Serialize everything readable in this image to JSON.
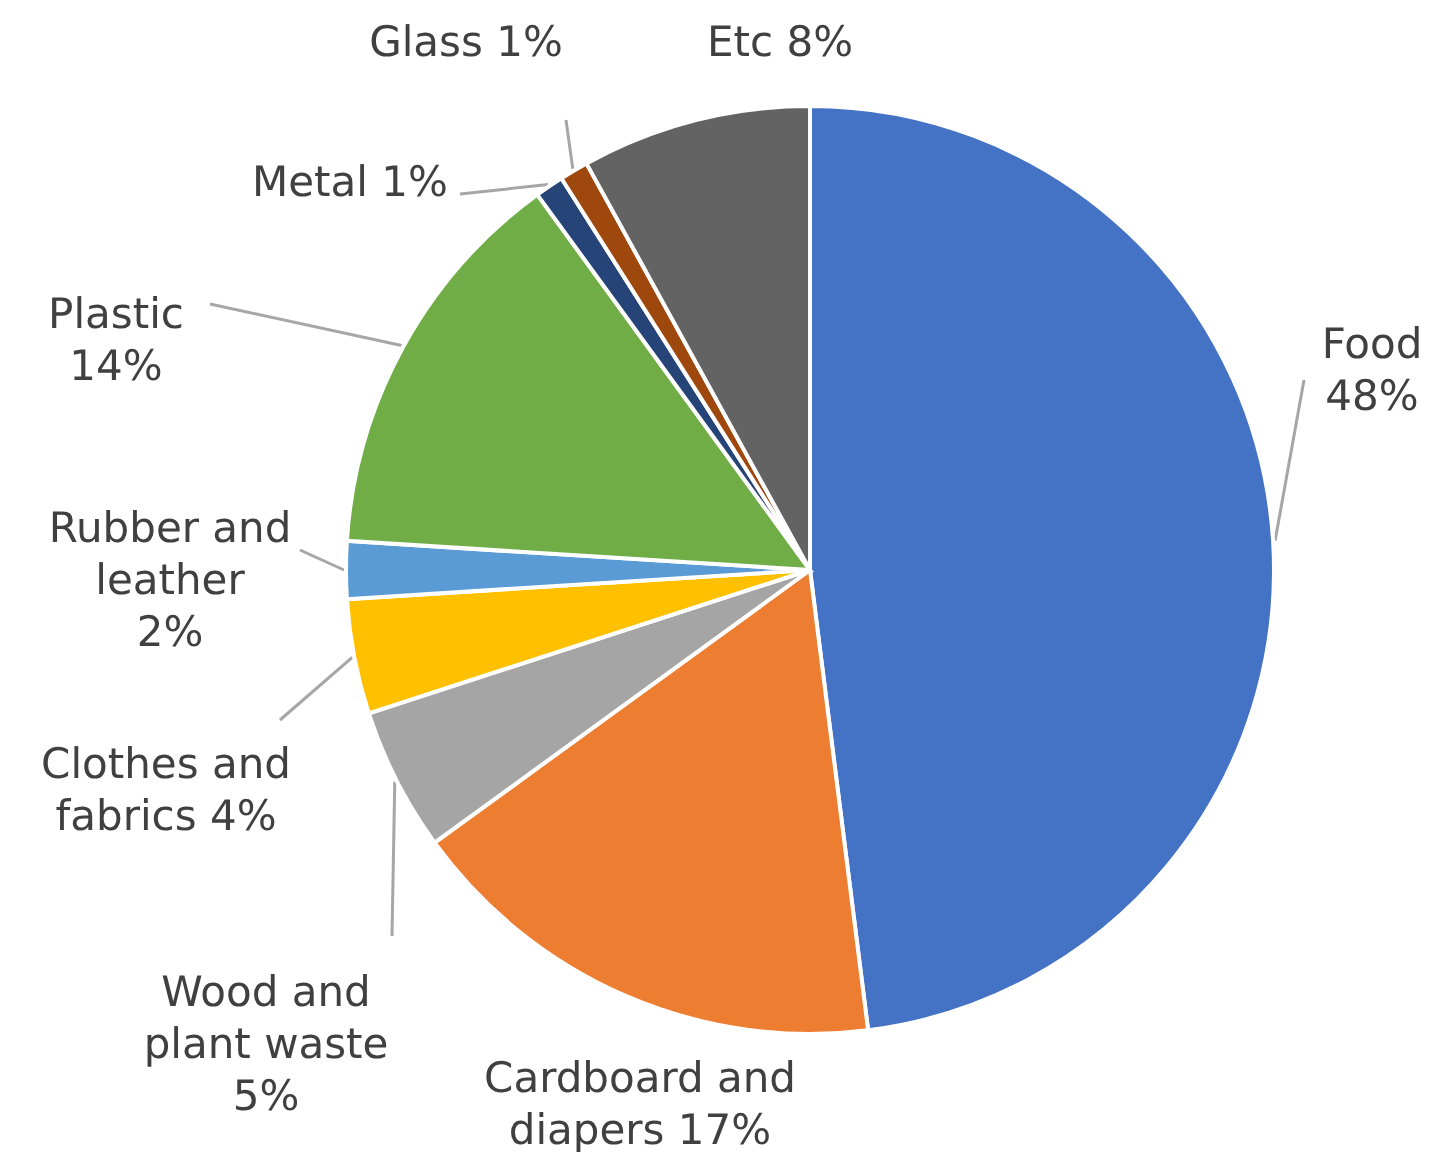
{
  "chart_data": {
    "type": "pie",
    "categories": [
      "Food",
      "Cardboard and diapers",
      "Wood and plant waste",
      "Clothes and fabrics",
      "Rubber and leather",
      "Plastic",
      "Metal",
      "Glass",
      "Etc"
    ],
    "values": [
      48,
      17,
      5,
      4,
      2,
      14,
      1,
      1,
      8
    ],
    "value_labels": [
      "48%",
      "17%",
      "5%",
      "4%",
      "2%",
      "14%",
      "1%",
      "1%",
      "8%"
    ],
    "colors": [
      "#4472c4",
      "#ed7d31",
      "#a5a5a5",
      "#ffc000",
      "#5b9bd5",
      "#70ad47",
      "#264478",
      "#9e480e",
      "#636363"
    ]
  }
}
